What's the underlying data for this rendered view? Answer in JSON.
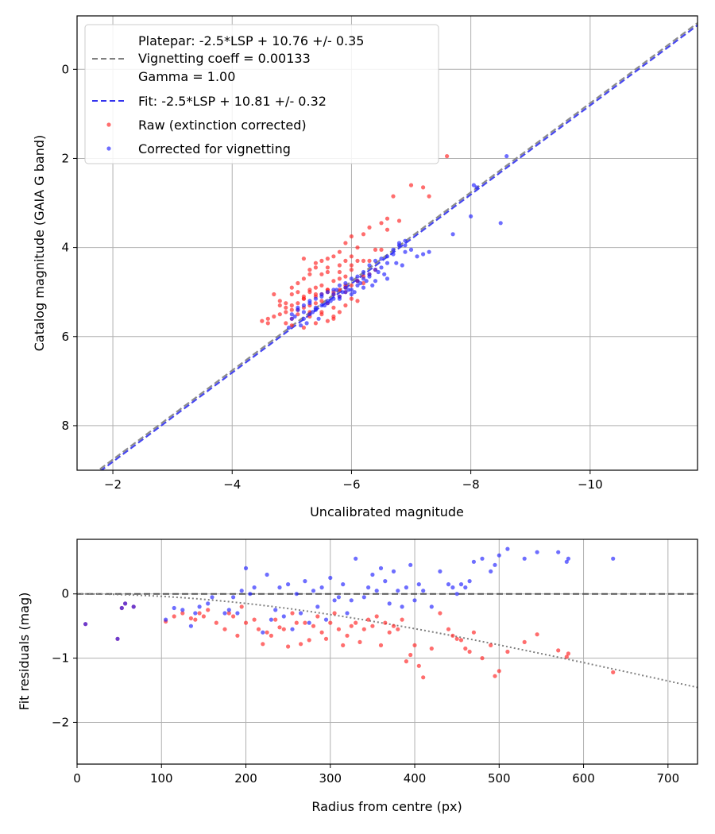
{
  "chart_data": [
    {
      "type": "scatter",
      "xlabel": "Uncalibrated magnitude",
      "ylabel": "Catalog magnitude (GAIA G band)",
      "xlim": [
        -1.4,
        -11.8
      ],
      "ylim": [
        9.0,
        -1.2
      ],
      "xticks": [
        -2,
        -4,
        -6,
        -8,
        -10
      ],
      "xtick_labels": [
        "−2",
        "−4",
        "−6",
        "−8",
        "−10"
      ],
      "yticks": [
        0,
        2,
        4,
        6,
        8
      ],
      "ytick_labels": [
        "0",
        "2",
        "4",
        "6",
        "8"
      ],
      "grid": true,
      "legend_position": "top-left",
      "lines": [
        {
          "name": "platepar",
          "label_lines": [
            "Platepar: -2.5*LSP + 10.76 +/- 0.35",
            "Vignetting coeff = 0.00133",
            "Gamma = 1.00"
          ],
          "color": "#808080",
          "style": "dashed",
          "slope": 1.0,
          "intercept": 10.76
        },
        {
          "name": "fit",
          "label_lines": [
            "Fit: -2.5*LSP + 10.81 +/- 0.32"
          ],
          "color": "#3333ee",
          "style": "dashed",
          "slope": 1.0,
          "intercept": 10.81
        }
      ],
      "series": [
        {
          "name": "Raw (extinction corrected)",
          "color": "#ff2020",
          "x": [
            -7.6,
            -7.0,
            -7.2,
            -7.3,
            -6.7,
            -6.6,
            -6.5,
            -6.8,
            -6.3,
            -6.2,
            -6.0,
            -5.9,
            -6.1,
            -6.4,
            -6.3,
            -5.8,
            -5.7,
            -5.6,
            -5.9,
            -6.0,
            -5.5,
            -5.4,
            -5.6,
            -5.3,
            -5.2,
            -5.8,
            -5.9,
            -6.1,
            -6.2,
            -5.7,
            -5.5,
            -5.4,
            -5.3,
            -5.1,
            -5.0,
            -5.2,
            -5.6,
            -5.7,
            -5.8,
            -6.0,
            -6.1,
            -5.9,
            -5.6,
            -5.5,
            -5.4,
            -5.3,
            -5.2,
            -5.0,
            -4.9,
            -4.8,
            -4.7,
            -4.6,
            -4.5,
            -4.8,
            -5.0,
            -5.1,
            -5.3,
            -5.5,
            -5.7,
            -5.9,
            -6.0,
            -6.2,
            -6.4,
            -6.3,
            -5.8,
            -5.6,
            -5.4,
            -5.2,
            -5.1,
            -4.9,
            -4.9,
            -5.0,
            -5.2,
            -5.4,
            -5.6,
            -5.7,
            -5.8,
            -6.1,
            -6.5,
            -6.6,
            -5.5,
            -5.3,
            -5.1,
            -5.0,
            -4.7,
            -4.6,
            -5.2,
            -5.4,
            -5.6,
            -5.8,
            -6.0,
            -6.2,
            -5.9,
            -5.7,
            -5.5,
            -5.3,
            -5.1,
            -4.9,
            -5.3,
            -5.5,
            -5.7,
            -5.9,
            -6.1,
            -5.0,
            -4.8,
            -5.6,
            -5.8,
            -6.0,
            -5.4,
            -5.2
          ],
          "y": [
            1.95,
            2.6,
            2.65,
            2.85,
            2.85,
            3.35,
            3.45,
            3.4,
            3.55,
            3.7,
            3.75,
            3.9,
            4.0,
            4.05,
            4.3,
            4.1,
            4.2,
            4.25,
            4.3,
            4.4,
            4.3,
            4.45,
            4.55,
            4.6,
            4.7,
            4.55,
            4.65,
            4.75,
            4.8,
            4.75,
            4.85,
            4.9,
            4.95,
            5.0,
            5.05,
            5.1,
            5.0,
            5.05,
            5.1,
            5.15,
            5.2,
            5.3,
            5.25,
            5.2,
            5.25,
            5.3,
            5.35,
            5.4,
            5.45,
            5.5,
            5.55,
            5.6,
            5.65,
            5.2,
            5.3,
            5.4,
            5.45,
            5.5,
            5.55,
            4.9,
            4.85,
            4.65,
            4.5,
            4.6,
            4.95,
            4.95,
            5.1,
            5.15,
            5.25,
            5.35,
            5.7,
            5.75,
            5.8,
            5.7,
            5.65,
            5.6,
            5.45,
            4.3,
            4.05,
            3.6,
            4.6,
            4.5,
            4.8,
            4.9,
            5.05,
            5.7,
            4.25,
            4.35,
            4.45,
            4.7,
            4.5,
            4.3,
            5.0,
            5.35,
            5.45,
            5.55,
            5.5,
            5.25,
            5.0,
            5.05,
            5.0,
            4.85,
            4.75,
            5.6,
            5.3,
            4.95,
            4.4,
            4.2,
            5.05,
            5.15
          ]
        },
        {
          "name": "Corrected for vignetting",
          "color": "#2020ff",
          "x": [
            -8.6,
            -8.1,
            -8.05,
            -8.5,
            -8.0,
            -7.7,
            -7.3,
            -7.0,
            -6.9,
            -6.8,
            -6.7,
            -6.6,
            -6.5,
            -6.4,
            -6.3,
            -6.2,
            -6.1,
            -6.0,
            -5.9,
            -5.8,
            -5.7,
            -5.6,
            -5.5,
            -5.4,
            -5.3,
            -5.2,
            -5.1,
            -5.0,
            -6.7,
            -6.6,
            -6.5,
            -6.4,
            -6.3,
            -6.2,
            -6.1,
            -6.0,
            -5.9,
            -5.8,
            -5.7,
            -5.6,
            -5.5,
            -5.4,
            -5.3,
            -5.2,
            -6.9,
            -6.8,
            -6.4,
            -6.2,
            -6.0,
            -5.8,
            -5.6,
            -5.4,
            -5.2,
            -5.0,
            -6.3,
            -6.1,
            -5.9,
            -5.7,
            -5.5,
            -5.3,
            -5.1,
            -6.6,
            -6.35,
            -6.05,
            -5.75,
            -5.45,
            -5.15,
            -7.1,
            -6.85,
            -6.55,
            -6.25,
            -5.95,
            -5.65,
            -5.35,
            -5.05,
            -4.95,
            -6.45,
            -6.15,
            -5.85,
            -5.55,
            -5.25,
            -6.75,
            -6.9,
            -7.2
          ],
          "y": [
            1.95,
            2.65,
            2.6,
            3.45,
            3.3,
            3.7,
            4.1,
            4.05,
            3.95,
            3.9,
            4.05,
            4.2,
            4.25,
            4.3,
            4.4,
            4.55,
            4.65,
            4.7,
            4.8,
            4.85,
            4.95,
            5.0,
            5.05,
            5.15,
            5.2,
            5.3,
            5.4,
            5.5,
            4.15,
            4.35,
            4.45,
            4.5,
            4.6,
            4.7,
            4.85,
            4.95,
            5.0,
            5.1,
            5.15,
            5.2,
            5.3,
            5.35,
            5.5,
            5.6,
            3.85,
            3.95,
            4.75,
            4.9,
            5.05,
            5.15,
            5.25,
            5.4,
            5.45,
            5.6,
            4.65,
            4.75,
            4.9,
            5.05,
            5.1,
            5.25,
            5.35,
            4.7,
            4.85,
            5.0,
            4.95,
            5.6,
            5.75,
            4.2,
            4.4,
            4.6,
            4.75,
            4.95,
            5.2,
            5.45,
            5.55,
            5.8,
            4.55,
            4.8,
            5.0,
            5.3,
            5.7,
            4.35,
            4.1,
            4.15
          ]
        }
      ]
    },
    {
      "type": "scatter",
      "xlabel": "Radius from centre (px)",
      "ylabel": "Fit residuals (mag)",
      "xlim": [
        0,
        735
      ],
      "ylim": [
        -2.65,
        0.85
      ],
      "xticks": [
        0,
        100,
        200,
        300,
        400,
        500,
        600,
        700
      ],
      "xtick_labels": [
        "0",
        "100",
        "200",
        "300",
        "400",
        "500",
        "600",
        "700"
      ],
      "yticks": [
        0,
        -1,
        -2
      ],
      "ytick_labels": [
        "0",
        "−1",
        "−2"
      ],
      "grid": true,
      "reference_line": {
        "y": 0,
        "color": "#555555",
        "style": "dashed"
      },
      "vignetting_curve": {
        "coeff": 0.00133,
        "color": "#808080",
        "style": "dotted"
      },
      "series": [
        {
          "name": "Raw (extinction corrected)",
          "color": "#ff2020",
          "x": [
            10,
            48,
            53,
            57,
            67,
            105,
            115,
            125,
            135,
            140,
            145,
            150,
            155,
            165,
            175,
            180,
            185,
            190,
            195,
            200,
            210,
            215,
            220,
            225,
            230,
            235,
            240,
            245,
            250,
            255,
            260,
            265,
            270,
            275,
            280,
            285,
            290,
            295,
            300,
            305,
            310,
            315,
            320,
            325,
            330,
            335,
            340,
            345,
            350,
            355,
            360,
            365,
            370,
            375,
            380,
            385,
            390,
            395,
            400,
            405,
            410,
            420,
            430,
            440,
            445,
            450,
            455,
            460,
            465,
            470,
            480,
            490,
            495,
            500,
            510,
            530,
            545,
            570,
            580,
            582,
            635
          ],
          "y": [
            -0.47,
            -0.7,
            -0.22,
            -0.15,
            -0.2,
            -0.43,
            -0.35,
            -0.3,
            -0.38,
            -0.4,
            -0.3,
            -0.35,
            -0.25,
            -0.45,
            -0.55,
            -0.3,
            -0.35,
            -0.65,
            -0.2,
            -0.45,
            -0.4,
            -0.55,
            -0.78,
            -0.6,
            -0.65,
            -0.4,
            -0.52,
            -0.55,
            -0.82,
            -0.3,
            -0.45,
            -0.78,
            -0.45,
            -0.72,
            -0.5,
            -0.35,
            -0.6,
            -0.7,
            -0.45,
            -0.3,
            -0.55,
            -0.8,
            -0.65,
            -0.5,
            -0.45,
            -0.75,
            -0.55,
            -0.4,
            -0.5,
            -0.35,
            -0.8,
            -0.45,
            -0.6,
            -0.5,
            -0.55,
            -0.4,
            -1.05,
            -0.95,
            -0.8,
            -1.12,
            -1.3,
            -0.85,
            -0.3,
            -0.55,
            -0.65,
            -0.7,
            -0.72,
            -0.85,
            -0.9,
            -0.6,
            -1.0,
            -0.8,
            -1.28,
            -1.2,
            -0.9,
            -0.75,
            -0.63,
            -0.88,
            -0.98,
            -0.93,
            -1.22
          ]
        },
        {
          "name": "Corrected for vignetting",
          "color": "#2020ff",
          "x": [
            10,
            48,
            53,
            57,
            67,
            105,
            115,
            125,
            135,
            140,
            145,
            155,
            160,
            175,
            180,
            185,
            190,
            195,
            200,
            205,
            210,
            220,
            225,
            230,
            235,
            240,
            245,
            250,
            255,
            260,
            265,
            270,
            275,
            280,
            285,
            290,
            295,
            300,
            305,
            310,
            315,
            320,
            325,
            330,
            340,
            345,
            350,
            355,
            360,
            365,
            370,
            375,
            380,
            385,
            390,
            395,
            400,
            405,
            410,
            420,
            430,
            440,
            445,
            450,
            455,
            460,
            465,
            470,
            480,
            490,
            495,
            500,
            510,
            530,
            545,
            570,
            580,
            582,
            635
          ],
          "y": [
            -0.47,
            -0.7,
            -0.22,
            -0.15,
            -0.2,
            -0.4,
            -0.22,
            -0.25,
            -0.5,
            -0.3,
            -0.2,
            -0.15,
            -0.05,
            -0.3,
            -0.25,
            -0.05,
            -0.3,
            0.05,
            0.4,
            0.0,
            0.1,
            -0.6,
            0.3,
            -0.4,
            -0.25,
            0.1,
            -0.35,
            0.15,
            -0.55,
            0.0,
            -0.3,
            0.2,
            -0.45,
            0.05,
            -0.2,
            0.1,
            -0.4,
            0.25,
            -0.1,
            -0.05,
            0.15,
            -0.3,
            -0.1,
            0.55,
            -0.05,
            0.1,
            0.3,
            0.05,
            0.4,
            0.2,
            -0.15,
            0.35,
            0.05,
            -0.2,
            0.1,
            0.45,
            -0.1,
            0.15,
            0.05,
            -0.2,
            0.35,
            0.15,
            0.1,
            0.0,
            0.15,
            0.1,
            0.2,
            0.5,
            0.55,
            0.35,
            0.45,
            0.6,
            0.7,
            0.55,
            0.65,
            0.65,
            0.5,
            0.55,
            0.55
          ]
        }
      ]
    }
  ]
}
